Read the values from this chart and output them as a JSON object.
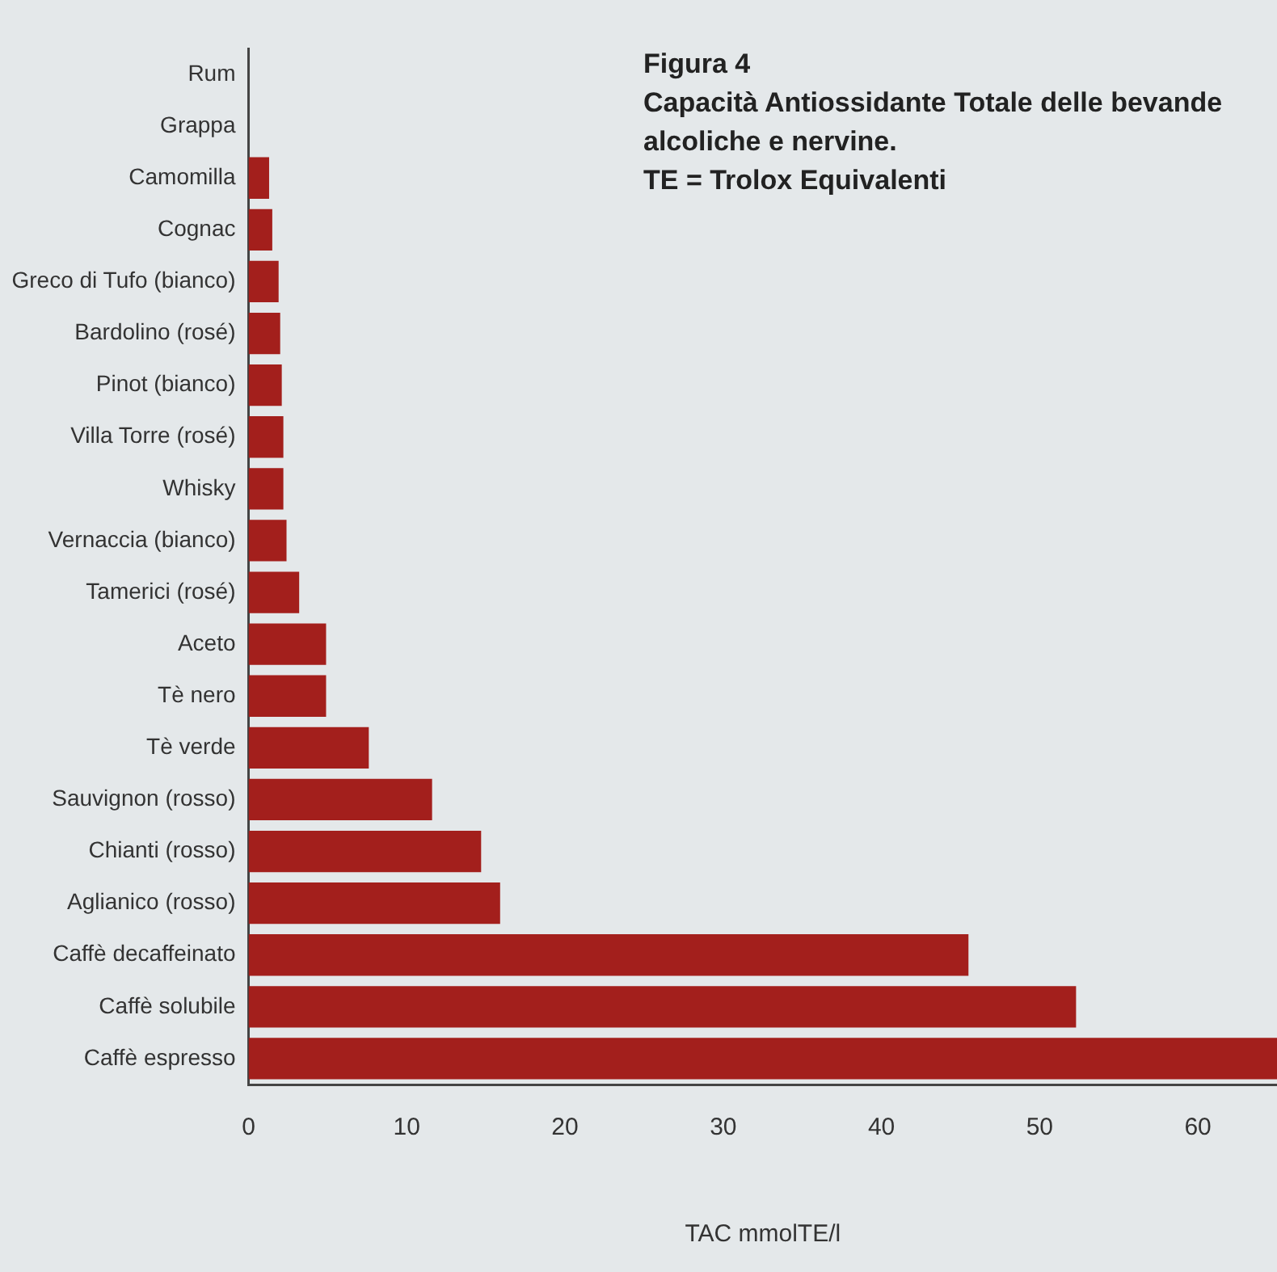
{
  "chart_data": {
    "type": "bar",
    "orientation": "horizontal",
    "title": "Figura 4",
    "subtitle": "Capacità Antiossidante Totale delle bevande alcoliche e nervine.",
    "annotations": [
      "TE = Trolox Equivalenti"
    ],
    "xlabel": "TAC mmolTE/l",
    "categories": [
      "Rum",
      "Grappa",
      "Camomilla",
      "Cognac",
      "Greco di Tufo (bianco)",
      "Bardolino (rosé)",
      "Pinot (bianco)",
      "Villa Torre (rosé)",
      "Whisky",
      "Vernaccia (bianco)",
      "Tamerici (rosé)",
      "Aceto",
      "Tè nero",
      "Tè verde",
      "Sauvignon (rosso)",
      "Chianti (rosso)",
      "Aglianico (rosso)",
      "Caffè decaffeinato",
      "Caffè solubile",
      "Caffè espresso"
    ],
    "values": [
      0,
      0,
      1.3,
      1.5,
      1.9,
      2.0,
      2.1,
      2.2,
      2.2,
      2.4,
      3.2,
      4.9,
      4.9,
      7.6,
      11.6,
      14.7,
      15.9,
      45.5,
      52.3,
      65
    ],
    "color": "#a31f1c",
    "xlim": [
      0,
      65
    ],
    "xticks": [
      0,
      10,
      20,
      30,
      40,
      50,
      60
    ],
    "grid": false,
    "legend": false
  }
}
